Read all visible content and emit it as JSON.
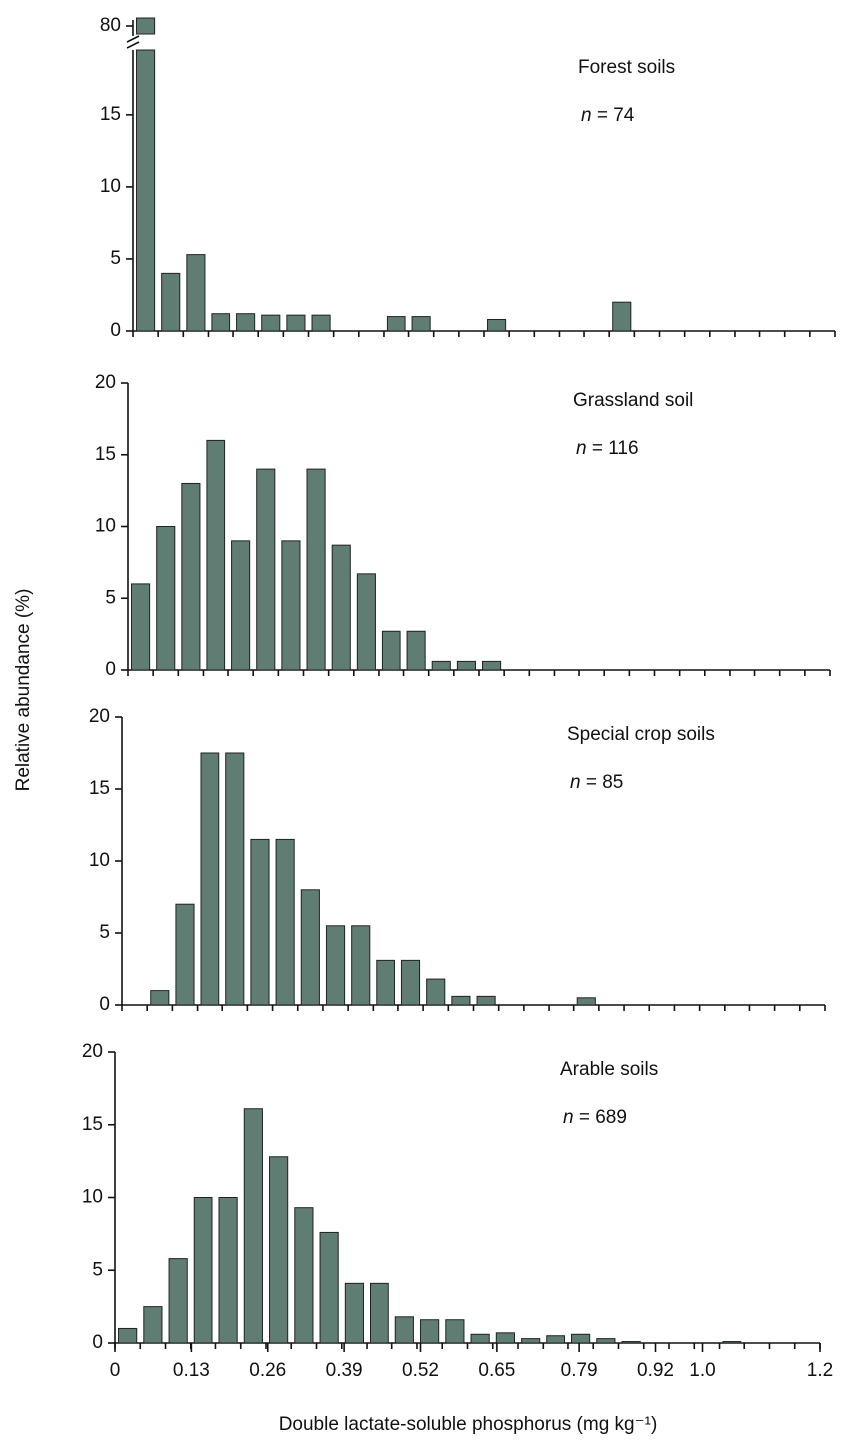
{
  "ylabel": "Relative abundance (%)",
  "xlabel": "Double lactate-soluble phosphorus (mg kg⁻¹)",
  "chart_data": [
    {
      "type": "histogram",
      "annotation": "Forest soils",
      "n_label": "n = 74",
      "color": "#5f7d72",
      "bins": [
        0,
        0.043,
        0.086,
        0.129,
        0.171,
        0.214,
        0.257,
        0.3,
        0.343,
        0.386,
        0.429,
        0.471,
        0.514,
        0.557,
        0.6,
        0.643,
        0.686,
        0.729,
        0.771,
        0.814,
        0.857,
        0.9,
        0.943,
        0.986,
        1.029,
        1.071,
        1.114,
        1.157,
        1.2
      ],
      "counts": [
        80,
        4,
        5.3,
        1.2,
        1.2,
        1.1,
        1.1,
        1.1,
        0,
        0,
        1,
        1,
        0,
        0,
        0.8,
        0,
        0,
        0,
        0,
        2,
        0,
        0,
        0,
        0,
        0,
        0,
        0,
        0
      ],
      "xlim": [
        0,
        1.2
      ],
      "ylim": [
        0,
        19.5
      ],
      "yticks": [
        0,
        5,
        10,
        15,
        80
      ],
      "y_break": true
    },
    {
      "type": "histogram",
      "annotation": "Grassland soil",
      "n_label": "n = 116",
      "color": "#5f7d72",
      "bins": [
        0,
        0.043,
        0.086,
        0.129,
        0.171,
        0.214,
        0.257,
        0.3,
        0.343,
        0.386,
        0.429,
        0.471,
        0.514,
        0.557,
        0.6,
        0.643,
        0.686,
        0.729,
        0.771,
        0.814,
        0.857,
        0.9,
        0.943,
        0.986,
        1.029,
        1.071,
        1.114,
        1.157,
        1.2
      ],
      "counts": [
        6,
        10,
        13,
        16,
        9,
        14,
        9,
        14,
        8.7,
        6.7,
        2.7,
        2.7,
        0.6,
        0.6,
        0.6,
        0,
        0,
        0,
        0,
        0,
        0,
        0,
        0,
        0,
        0,
        0,
        0,
        0
      ],
      "xlim": [
        0,
        1.2
      ],
      "ylim": [
        0,
        20
      ],
      "yticks": [
        0,
        5,
        10,
        15,
        20
      ]
    },
    {
      "type": "histogram",
      "annotation": "Special crop soils",
      "n_label": "n = 85",
      "color": "#5f7d72",
      "bins": [
        0,
        0.043,
        0.086,
        0.129,
        0.171,
        0.214,
        0.257,
        0.3,
        0.343,
        0.386,
        0.429,
        0.471,
        0.514,
        0.557,
        0.6,
        0.643,
        0.686,
        0.729,
        0.771,
        0.814,
        0.857,
        0.9,
        0.943,
        0.986,
        1.029,
        1.071,
        1.114,
        1.157,
        1.2
      ],
      "counts": [
        0,
        1,
        7,
        17.5,
        17.5,
        11.5,
        11.5,
        8,
        5.5,
        5.5,
        3.1,
        3.1,
        1.8,
        0.6,
        0.6,
        0,
        0,
        0,
        0.5,
        0,
        0,
        0,
        0,
        0,
        0,
        0,
        0,
        0
      ],
      "xlim": [
        0,
        1.2
      ],
      "ylim": [
        0,
        20
      ],
      "yticks": [
        0,
        5,
        10,
        15,
        20
      ]
    },
    {
      "type": "histogram",
      "annotation": "Arable soils",
      "n_label": "n = 689",
      "color": "#5f7d72",
      "bins": [
        0,
        0.043,
        0.086,
        0.129,
        0.171,
        0.214,
        0.257,
        0.3,
        0.343,
        0.386,
        0.429,
        0.471,
        0.514,
        0.557,
        0.6,
        0.643,
        0.686,
        0.729,
        0.771,
        0.814,
        0.857,
        0.9,
        0.943,
        0.986,
        1.029,
        1.071,
        1.114,
        1.157,
        1.2
      ],
      "counts": [
        1,
        2.5,
        5.8,
        10,
        10,
        16.1,
        12.8,
        9.3,
        7.6,
        4.1,
        4.1,
        1.8,
        1.6,
        1.6,
        0.6,
        0.7,
        0.3,
        0.5,
        0.6,
        0.3,
        0.1,
        0,
        0,
        0,
        0.1,
        0,
        0,
        0
      ],
      "xlim": [
        0,
        1.2
      ],
      "ylim": [
        0,
        20
      ],
      "yticks": [
        0,
        5,
        10,
        15,
        20
      ],
      "xticks": [
        0,
        0.13,
        0.26,
        0.39,
        0.52,
        0.65,
        0.79,
        0.92,
        {
          "value": 1.0,
          "label": "1.0"
        },
        1.2
      ]
    }
  ]
}
